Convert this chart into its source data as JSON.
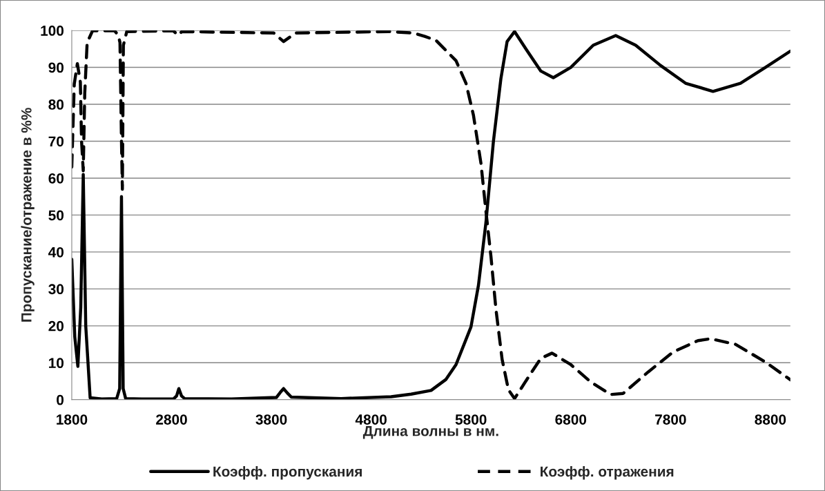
{
  "chart_data": {
    "type": "line",
    "xlabel": "Длина волны в нм.",
    "ylabel": "Пропускание/отражение в %%",
    "xlim": [
      1800,
      9000
    ],
    "xticks": [
      1800,
      2800,
      3800,
      4800,
      5800,
      6800,
      7800,
      8800
    ],
    "ylim": [
      0,
      100
    ],
    "yticks": [
      0,
      10,
      20,
      30,
      40,
      50,
      60,
      70,
      80,
      90,
      100
    ],
    "grid": "y",
    "legend": "bottom",
    "marker": "none",
    "series": [
      {
        "name": "Коэфф. пропускания",
        "color": "#000000",
        "line_style": "solid",
        "x": [
          1800,
          1830,
          1861,
          1890,
          1915,
          1940,
          1984,
          2100,
          2250,
          2280,
          2298,
          2315,
          2340,
          2500,
          2820,
          2850,
          2873,
          2900,
          2930,
          3400,
          3850,
          3890,
          3922,
          3960,
          4000,
          4500,
          5000,
          5200,
          5400,
          5550,
          5650,
          5800,
          5875,
          5950,
          6025,
          6100,
          6162,
          6237,
          6350,
          6500,
          6625,
          6800,
          7025,
          7250,
          7450,
          7700,
          7950,
          8225,
          8500,
          8750,
          9000
        ],
        "values": [
          38,
          17,
          9,
          25,
          61,
          20,
          0.5,
          0.2,
          0.3,
          3,
          55,
          3,
          0.3,
          0.2,
          0.2,
          1,
          3,
          1,
          0.3,
          0.2,
          0.6,
          2,
          3,
          1.8,
          0.7,
          0.3,
          0.8,
          1.5,
          2.5,
          5.5,
          9.5,
          19.7,
          31,
          48,
          70,
          87,
          97,
          99.7,
          95,
          89,
          87.2,
          90,
          96,
          98.6,
          96,
          90.5,
          85.7,
          83.5,
          85.7,
          90,
          94.4
        ]
      },
      {
        "name": "Коэфф. отражения",
        "color": "#000000",
        "line_style": "dashed",
        "x": [
          1800,
          1825,
          1856,
          1886,
          1898,
          1915,
          1930,
          1954,
          2008,
          2229,
          2266,
          2283,
          2298,
          2307,
          2317,
          2351,
          2817,
          2866,
          2903,
          3824,
          3922,
          4044,
          4970,
          5225,
          5336,
          5450,
          5650,
          5750,
          5825,
          5900,
          5950,
          6000,
          6050,
          6112,
          6175,
          6237,
          6375,
          6500,
          6612,
          6800,
          7000,
          7200,
          7325,
          7575,
          7825,
          8075,
          8200,
          8450,
          8750,
          9000
        ],
        "values": [
          63,
          85.5,
          91,
          86,
          70,
          62,
          83,
          96.7,
          99.9,
          99.9,
          98.7,
          96.7,
          70,
          57,
          96,
          99.7,
          99.9,
          98.7,
          99.7,
          99.3,
          97,
          99.3,
          99.7,
          99.3,
          98.4,
          97.3,
          91.8,
          85.7,
          77,
          64,
          51,
          38.8,
          24.5,
          10.9,
          2.7,
          0.3,
          6.1,
          11.2,
          12.6,
          9.5,
          4.8,
          1.4,
          1.7,
          7.5,
          12.9,
          16,
          16.5,
          15,
          10.2,
          5.4
        ]
      }
    ]
  }
}
